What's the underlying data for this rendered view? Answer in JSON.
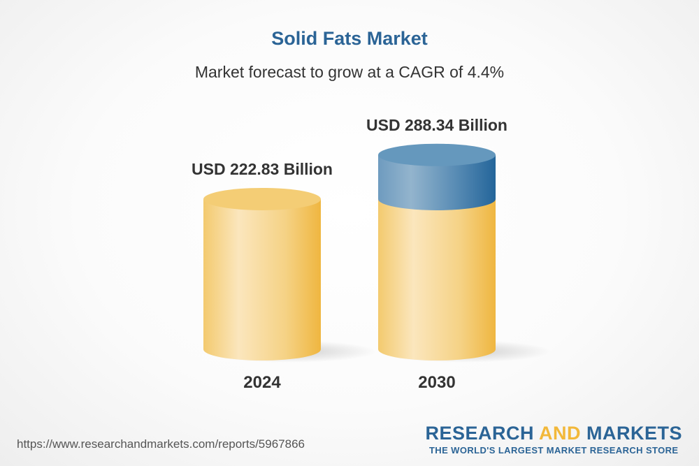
{
  "chart_data": {
    "type": "bar",
    "style": "3d-cylinder",
    "title": "Solid Fats Market",
    "subtitle": "Market forecast to grow at a CAGR of 4.4%",
    "categories": [
      "2024",
      "2030"
    ],
    "values": [
      222.83,
      288.34
    ],
    "data_labels": [
      "USD 222.83 Billion",
      "USD 288.34 Billion"
    ],
    "unit": "USD Billion",
    "colors": {
      "base": "#f2c45a",
      "base_light": "#fbe7be",
      "growth": "#2b6a9c",
      "growth_light": "#8fb2cc",
      "title": "#2b6496"
    },
    "grid": false
  },
  "footer": {
    "url": "https://www.researchandmarkets.com/reports/5967866",
    "logo_word1": "RESEARCH",
    "logo_word2": "AND",
    "logo_word3": "MARKETS",
    "logo_tagline": "THE WORLD'S LARGEST MARKET RESEARCH STORE"
  }
}
